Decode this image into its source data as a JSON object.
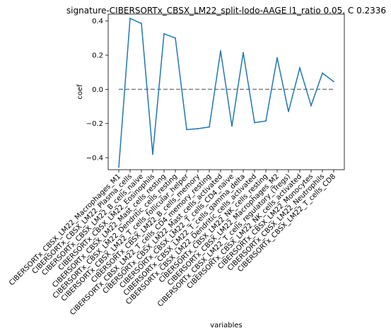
{
  "chart_data": {
    "type": "line",
    "title": "signature-CIBERSORTx_CBSX_LM22_split-lodo-AAGE l1_ratio 0.05, C 0.2336",
    "xlabel": "variables",
    "ylabel": "coef",
    "ylim": [
      -0.47,
      0.44
    ],
    "yticks": [
      -0.4,
      -0.2,
      0.0,
      0.2,
      0.4
    ],
    "ytick_labels": [
      "−0.4",
      "−0.2",
      "0.0",
      "0.2",
      "0.4"
    ],
    "grid": false,
    "reference_line": {
      "y": 0.0,
      "style": "dashed",
      "color": "#808080"
    },
    "series": [
      {
        "color": "#1f77b4",
        "values": [
          -0.455,
          0.415,
          0.385,
          -0.38,
          0.325,
          0.3,
          -0.235,
          -0.23,
          -0.22,
          0.225,
          -0.215,
          0.215,
          -0.195,
          -0.185,
          0.185,
          -0.13,
          0.125,
          -0.095,
          0.095,
          0.045
        ]
      }
    ],
    "categories": [
      "CIBERSORTx_CBSX_LM22_Macrophages_M1",
      "CIBERSORTx_CBSX_LM22_Plasma_cells",
      "CIBERSORTx_CBSX_LM22_B_cells_naive",
      "CIBERSORTx_CBSX_LM22_Eosinophils",
      "CIBERSORTx_CBSX_LM22_Mast_cells_resting",
      "CIBERSORTx_CBSX_LM22_Dendritic_cells_resting",
      "CIBERSORTx_CBSX_LM22_T_cells_follicular_helper",
      "CIBERSORTx_CBSX_LM22_B_cells_memory",
      "CIBERSORTx_CBSX_LM22_T_cells_CD4_memory_resting",
      "CIBERSORTx_CBSX_LM22_Mast_cells_activated",
      "CIBERSORTx_CBSX_LM22_T_cells_CD4_naive",
      "CIBERSORTx_CBSX_LM22_T_cells_gamma_delta",
      "CIBERSORTx_CBSX_LM22_Dendritic_cells_activated",
      "CIBERSORTx_CBSX_LM22_NK_cells_resting",
      "CIBERSORTx_CBSX_LM22_Macrophages_M2",
      "CIBERSORTx_CBSX_LM22_T_cells_regulatory_(Tregs)",
      "CIBERSORTx_CBSX_LM22_NK_cells_activated",
      "CIBERSORTx_CBSX_LM22_Monocytes",
      "CIBERSORTx_CBSX_LM22_Neutrophils",
      "CIBERSORTx_CBSX_LM22_T_cells_CD8"
    ]
  }
}
